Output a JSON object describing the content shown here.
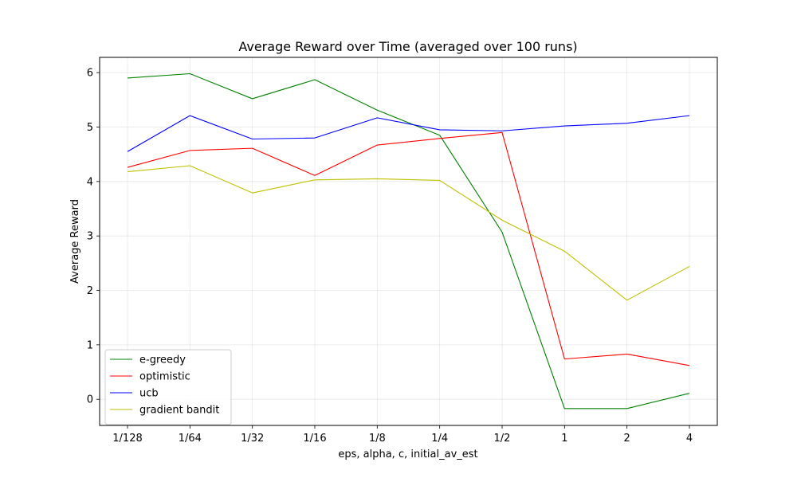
{
  "chart_data": {
    "type": "line",
    "title": "Average Reward over Time (averaged over 100 runs)",
    "xlabel": "eps, alpha, c, initial_av_est",
    "ylabel": "Average Reward",
    "categories": [
      "1/128",
      "1/64",
      "1/32",
      "1/16",
      "1/8",
      "1/4",
      "1/2",
      "1",
      "2",
      "4"
    ],
    "yticks": [
      0,
      1,
      2,
      3,
      4,
      5,
      6
    ],
    "ylim": [
      -0.48,
      6.28
    ],
    "grid": true,
    "legend_position": "lower-left",
    "series": [
      {
        "name": "e-greedy",
        "color": "#008000",
        "values": [
          5.9,
          5.98,
          5.52,
          5.87,
          5.31,
          4.85,
          3.07,
          -0.17,
          -0.17,
          0.11
        ]
      },
      {
        "name": "optimistic",
        "color": "#ff0000",
        "values": [
          4.26,
          4.57,
          4.61,
          4.11,
          4.67,
          4.79,
          4.9,
          0.74,
          0.83,
          0.62
        ]
      },
      {
        "name": "ucb",
        "color": "#0000ff",
        "values": [
          4.55,
          5.21,
          4.78,
          4.8,
          5.17,
          4.95,
          4.93,
          5.02,
          5.07,
          5.21
        ]
      },
      {
        "name": "gradient bandit",
        "color": "#bfbf00",
        "values": [
          4.18,
          4.29,
          3.79,
          4.03,
          4.05,
          4.02,
          3.29,
          2.72,
          1.82,
          2.44
        ]
      }
    ]
  }
}
